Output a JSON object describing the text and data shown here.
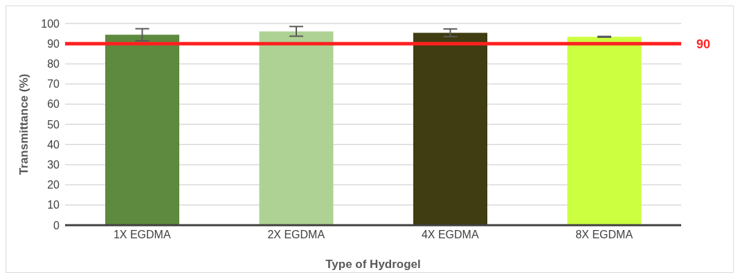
{
  "chart_data": {
    "type": "bar",
    "categories": [
      "1X EGDMA",
      "2X EGDMA",
      "4X EGDMA",
      "8X EGDMA"
    ],
    "values": [
      94.4,
      96.1,
      95.4,
      93.4
    ],
    "errors": [
      3,
      2.4,
      1.9,
      0.2
    ],
    "colors": [
      "#5e8a3f",
      "#aed293",
      "#3f3d11",
      "#ccff3f"
    ],
    "xlabel": "Type of Hydrogel",
    "ylabel": "Transmittance (%)",
    "ylim": [
      0,
      100
    ],
    "yticks": [
      0,
      10,
      20,
      30,
      40,
      50,
      60,
      70,
      80,
      90,
      100
    ],
    "grid": "y",
    "ref_lines": [
      {
        "axis": "y",
        "value": 90,
        "label": "90",
        "color": "#ff2020"
      }
    ]
  }
}
